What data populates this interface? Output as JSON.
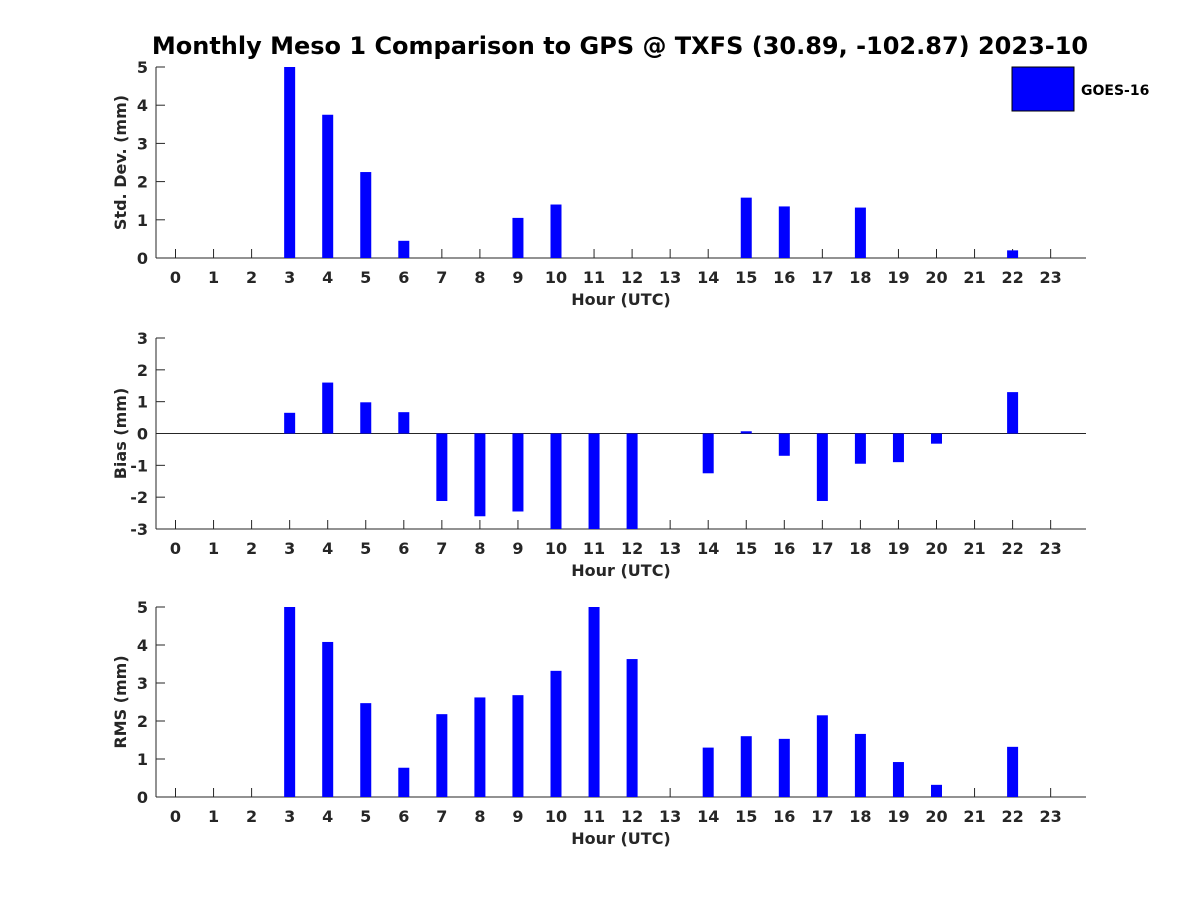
{
  "title": "Monthly Meso 1 Comparison to GPS @ TXFS (30.89, -102.87) 2023-10",
  "legend": {
    "label": "GOES-16",
    "color": "#0000ff",
    "placement": "top-right"
  },
  "colors": {
    "bar": "#0000ff",
    "axis": "#262626",
    "background": "#ffffff"
  },
  "chart_data": [
    {
      "type": "bar",
      "xlabel": "Hour (UTC)",
      "ylabel": "Std. Dev. (mm)",
      "ylim": [
        0,
        5
      ],
      "yticks": [
        0,
        1,
        2,
        3,
        4,
        5
      ],
      "grid": false,
      "categories": [
        "0",
        "1",
        "2",
        "3",
        "4",
        "5",
        "6",
        "7",
        "8",
        "9",
        "10",
        "11",
        "12",
        "13",
        "14",
        "15",
        "16",
        "17",
        "18",
        "19",
        "20",
        "21",
        "22",
        "23"
      ],
      "series": [
        {
          "name": "GOES-16",
          "values": [
            null,
            null,
            null,
            5.0,
            3.75,
            2.25,
            0.45,
            null,
            null,
            1.05,
            1.4,
            null,
            null,
            null,
            null,
            1.58,
            1.35,
            null,
            1.32,
            null,
            null,
            null,
            0.2,
            null
          ]
        }
      ]
    },
    {
      "type": "bar",
      "xlabel": "Hour (UTC)",
      "ylabel": "Bias (mm)",
      "ylim": [
        -3,
        3
      ],
      "yticks": [
        -3,
        -2,
        -1,
        0,
        1,
        2,
        3
      ],
      "grid": false,
      "categories": [
        "0",
        "1",
        "2",
        "3",
        "4",
        "5",
        "6",
        "7",
        "8",
        "9",
        "10",
        "11",
        "12",
        "13",
        "14",
        "15",
        "16",
        "17",
        "18",
        "19",
        "20",
        "21",
        "22",
        "23"
      ],
      "series": [
        {
          "name": "GOES-16",
          "values": [
            null,
            null,
            null,
            0.65,
            1.6,
            0.98,
            0.67,
            -2.12,
            -2.6,
            -2.45,
            -3.0,
            -3.0,
            -3.0,
            null,
            -1.25,
            0.07,
            -0.7,
            -2.12,
            -0.95,
            -0.9,
            -0.32,
            null,
            1.3,
            null
          ]
        }
      ]
    },
    {
      "type": "bar",
      "xlabel": "Hour (UTC)",
      "ylabel": "RMS (mm)",
      "ylim": [
        0,
        5
      ],
      "yticks": [
        0,
        1,
        2,
        3,
        4,
        5
      ],
      "grid": false,
      "categories": [
        "0",
        "1",
        "2",
        "3",
        "4",
        "5",
        "6",
        "7",
        "8",
        "9",
        "10",
        "11",
        "12",
        "13",
        "14",
        "15",
        "16",
        "17",
        "18",
        "19",
        "20",
        "21",
        "22",
        "23"
      ],
      "series": [
        {
          "name": "GOES-16",
          "values": [
            null,
            null,
            null,
            5.0,
            4.08,
            2.47,
            0.77,
            2.18,
            2.62,
            2.68,
            3.32,
            5.0,
            3.63,
            null,
            1.3,
            1.6,
            1.53,
            2.15,
            1.66,
            0.92,
            0.32,
            null,
            1.32,
            null
          ]
        }
      ]
    }
  ]
}
